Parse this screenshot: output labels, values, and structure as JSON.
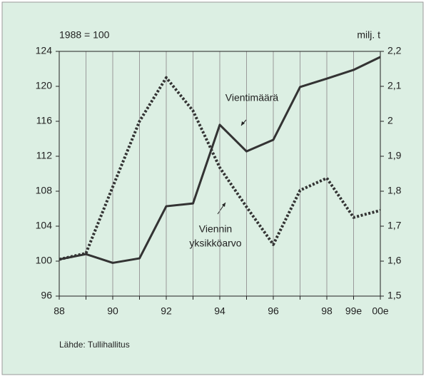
{
  "chart_data": {
    "type": "line",
    "y_label": "1988 = 100",
    "y2_label": "milj. t",
    "source": "Lähde: Tullihallitus",
    "categories": [
      "88",
      null,
      "90",
      null,
      "92",
      null,
      "94",
      null,
      "96",
      null,
      "98",
      "99e",
      "00e"
    ],
    "ylim": [
      96,
      124
    ],
    "yticks": [
      96,
      100,
      104,
      108,
      112,
      116,
      120,
      124
    ],
    "y2lim": [
      1.5,
      2.2
    ],
    "y2ticks": [
      {
        "value": 1.5,
        "label": "1,5"
      },
      {
        "value": 1.6,
        "label": "1,6"
      },
      {
        "value": 1.7,
        "label": "1,7"
      },
      {
        "value": 1.8,
        "label": "1,8"
      },
      {
        "value": 1.9,
        "label": "1,9"
      },
      {
        "value": 2,
        "label": "2"
      },
      {
        "value": 2.1,
        "label": "2,1"
      },
      {
        "value": 2.2,
        "label": "2,2"
      }
    ],
    "grid": true,
    "series": [
      {
        "name": "Vientimäärä",
        "color": "#333333",
        "style": "solid",
        "axis": "y2",
        "values": [
          1.605,
          1.62,
          1.595,
          1.608,
          1.757,
          1.765,
          1.99,
          1.914,
          1.947,
          2.098,
          2.122,
          2.147,
          2.184
        ]
      },
      {
        "name": [
          "Viennin",
          "yksikköarvo"
        ],
        "color": "#333333",
        "style": "dotted",
        "axis": "y",
        "values": [
          100.2,
          100.9,
          108.5,
          116,
          121,
          117.2,
          110.7,
          106.2,
          101.9,
          108.1,
          109.5,
          105,
          105.8
        ]
      }
    ]
  }
}
